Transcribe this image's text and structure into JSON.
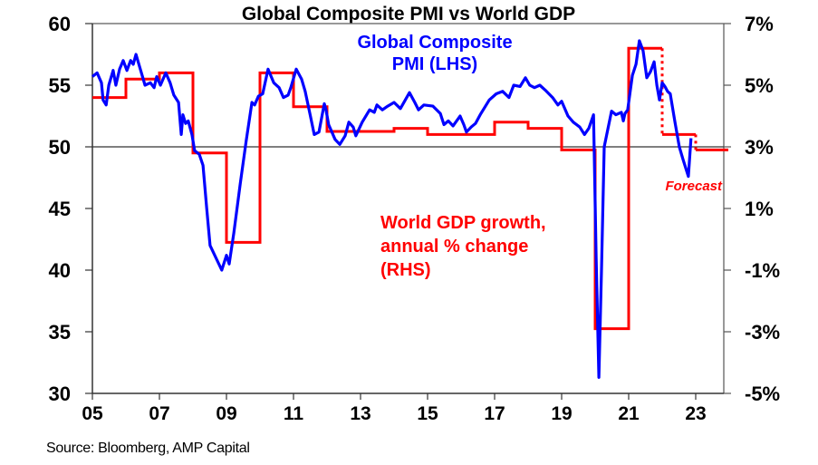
{
  "chart_data": {
    "type": "line",
    "title": "Global Composite PMI vs World GDP",
    "xlabel": "",
    "ylabel_left": "",
    "ylabel_right": "",
    "x_range": [
      2005,
      2024
    ],
    "x_ticks": [
      2005,
      2007,
      2009,
      2011,
      2013,
      2015,
      2017,
      2019,
      2021,
      2023
    ],
    "x_tick_labels": [
      "05",
      "07",
      "09",
      "11",
      "13",
      "15",
      "17",
      "19",
      "21",
      "23"
    ],
    "ylim_left": [
      30,
      60
    ],
    "y_ticks_left": [
      30,
      35,
      40,
      45,
      50,
      55,
      60
    ],
    "y_tick_labels_left": [
      "30",
      "35",
      "40",
      "45",
      "50",
      "55",
      "60"
    ],
    "ylim_right": [
      -5,
      7
    ],
    "y_ticks_right": [
      -5,
      -3,
      -1,
      1,
      3,
      5,
      7
    ],
    "y_tick_labels_right": [
      "-5%",
      "-3%",
      "-1%",
      "1%",
      "3%",
      "5%",
      "7%"
    ],
    "reference_line": {
      "axis": "left",
      "value": 50
    },
    "grid": false,
    "series": [
      {
        "name": "Global Composite PMI (LHS)",
        "axis": "left",
        "color": "#0000ff",
        "style": "line",
        "points": [
          [
            2005.0,
            55.7
          ],
          [
            2005.14,
            56.0
          ],
          [
            2005.27,
            55.2
          ],
          [
            2005.32,
            53.8
          ],
          [
            2005.41,
            53.4
          ],
          [
            2005.49,
            55.0
          ],
          [
            2005.62,
            56.2
          ],
          [
            2005.7,
            55.0
          ],
          [
            2005.81,
            56.3
          ],
          [
            2005.92,
            57.0
          ],
          [
            2006.03,
            56.2
          ],
          [
            2006.14,
            57.0
          ],
          [
            2006.22,
            56.7
          ],
          [
            2006.3,
            57.5
          ],
          [
            2006.43,
            56.3
          ],
          [
            2006.57,
            55.0
          ],
          [
            2006.73,
            55.2
          ],
          [
            2006.84,
            54.8
          ],
          [
            2006.92,
            55.7
          ],
          [
            2007.03,
            55.0
          ],
          [
            2007.19,
            56.0
          ],
          [
            2007.32,
            55.2
          ],
          [
            2007.43,
            54.2
          ],
          [
            2007.57,
            53.6
          ],
          [
            2007.65,
            51.0
          ],
          [
            2007.7,
            52.6
          ],
          [
            2007.78,
            51.9
          ],
          [
            2007.86,
            52.1
          ],
          [
            2007.97,
            51.0
          ],
          [
            2008.05,
            49.7
          ],
          [
            2008.19,
            49.4
          ],
          [
            2008.3,
            48.5
          ],
          [
            2008.41,
            45.0
          ],
          [
            2008.51,
            42.0
          ],
          [
            2008.86,
            40.0
          ],
          [
            2009.0,
            41.2
          ],
          [
            2009.08,
            40.5
          ],
          [
            2009.22,
            43.0
          ],
          [
            2009.41,
            47.0
          ],
          [
            2009.59,
            50.5
          ],
          [
            2009.76,
            53.6
          ],
          [
            2009.84,
            53.4
          ],
          [
            2009.95,
            54.1
          ],
          [
            2010.08,
            54.3
          ],
          [
            2010.24,
            56.3
          ],
          [
            2010.41,
            55.2
          ],
          [
            2010.57,
            54.8
          ],
          [
            2010.7,
            54.0
          ],
          [
            2010.84,
            54.2
          ],
          [
            2010.92,
            54.8
          ],
          [
            2011.08,
            56.3
          ],
          [
            2011.24,
            55.5
          ],
          [
            2011.35,
            54.5
          ],
          [
            2011.49,
            52.7
          ],
          [
            2011.62,
            51.0
          ],
          [
            2011.76,
            51.2
          ],
          [
            2011.92,
            53.5
          ],
          [
            2011.97,
            53.0
          ],
          [
            2012.05,
            51.8
          ],
          [
            2012.24,
            50.6
          ],
          [
            2012.38,
            50.2
          ],
          [
            2012.54,
            50.9
          ],
          [
            2012.65,
            52.0
          ],
          [
            2012.78,
            51.6
          ],
          [
            2012.86,
            50.9
          ],
          [
            2013.05,
            52.0
          ],
          [
            2013.27,
            53.0
          ],
          [
            2013.41,
            52.8
          ],
          [
            2013.49,
            53.4
          ],
          [
            2013.65,
            53.0
          ],
          [
            2013.81,
            53.3
          ],
          [
            2014.0,
            53.6
          ],
          [
            2014.19,
            53.1
          ],
          [
            2014.46,
            54.4
          ],
          [
            2014.62,
            53.6
          ],
          [
            2014.73,
            53.0
          ],
          [
            2014.89,
            53.4
          ],
          [
            2015.16,
            53.3
          ],
          [
            2015.38,
            52.7
          ],
          [
            2015.49,
            51.8
          ],
          [
            2015.62,
            52.1
          ],
          [
            2015.76,
            51.7
          ],
          [
            2015.97,
            52.5
          ],
          [
            2016.08,
            51.8
          ],
          [
            2016.16,
            51.2
          ],
          [
            2016.3,
            51.6
          ],
          [
            2016.43,
            51.9
          ],
          [
            2016.57,
            52.6
          ],
          [
            2016.84,
            53.8
          ],
          [
            2017.05,
            54.3
          ],
          [
            2017.24,
            54.5
          ],
          [
            2017.43,
            54.0
          ],
          [
            2017.57,
            55.0
          ],
          [
            2017.76,
            54.9
          ],
          [
            2017.92,
            55.6
          ],
          [
            2018.05,
            55.0
          ],
          [
            2018.19,
            54.8
          ],
          [
            2018.35,
            55.0
          ],
          [
            2018.51,
            54.6
          ],
          [
            2018.73,
            54.0
          ],
          [
            2018.89,
            53.4
          ],
          [
            2019.0,
            53.7
          ],
          [
            2019.19,
            52.5
          ],
          [
            2019.35,
            52.0
          ],
          [
            2019.54,
            51.6
          ],
          [
            2019.68,
            51.0
          ],
          [
            2019.81,
            51.5
          ],
          [
            2019.95,
            52.6
          ],
          [
            2020.03,
            41.0
          ],
          [
            2020.11,
            31.3
          ],
          [
            2020.19,
            40.0
          ],
          [
            2020.27,
            50.0
          ],
          [
            2020.49,
            52.9
          ],
          [
            2020.62,
            52.6
          ],
          [
            2020.78,
            52.8
          ],
          [
            2020.84,
            52.1
          ],
          [
            2020.89,
            52.7
          ],
          [
            2020.97,
            53.0
          ],
          [
            2021.11,
            55.8
          ],
          [
            2021.22,
            56.7
          ],
          [
            2021.32,
            58.6
          ],
          [
            2021.43,
            57.8
          ],
          [
            2021.54,
            55.6
          ],
          [
            2021.65,
            56.1
          ],
          [
            2021.76,
            56.9
          ],
          [
            2021.84,
            55.0
          ],
          [
            2021.92,
            53.8
          ],
          [
            2022.0,
            55.2
          ],
          [
            2022.08,
            54.9
          ],
          [
            2022.16,
            54.5
          ],
          [
            2022.24,
            54.3
          ],
          [
            2022.38,
            52.0
          ],
          [
            2022.51,
            50.0
          ],
          [
            2022.62,
            49.0
          ],
          [
            2022.7,
            48.3
          ],
          [
            2022.78,
            47.6
          ],
          [
            2022.86,
            50.7
          ]
        ]
      },
      {
        "name": "World GDP growth, annual % change (RHS)",
        "axis": "right",
        "color": "#ff0000",
        "style": "step",
        "years": [
          2005,
          2006,
          2007,
          2008,
          2009,
          2010,
          2011,
          2012,
          2013,
          2014,
          2015,
          2016,
          2017,
          2018,
          2019,
          2020,
          2021,
          2022,
          2023
        ],
        "values": [
          4.6,
          5.2,
          5.4,
          2.8,
          -0.1,
          5.4,
          4.3,
          3.5,
          3.5,
          3.6,
          3.4,
          3.4,
          3.8,
          3.6,
          2.9,
          -2.9,
          6.2,
          3.4,
          2.9
        ],
        "forecast_from": 2022,
        "end": 2024
      }
    ],
    "annotations": [
      {
        "text_lines": [
          "Global Composite",
          "PMI (LHS)"
        ],
        "color": "#0000ff",
        "position": "top-center"
      },
      {
        "text_lines": [
          "World GDP growth,",
          "annual % change",
          "(RHS)"
        ],
        "color": "#ff0000",
        "position": "center"
      },
      {
        "text_lines": [
          "Forecast"
        ],
        "color": "#ff0000",
        "position": "right",
        "style": "italic"
      }
    ]
  },
  "source": "Source: Bloomberg, AMP Capital"
}
